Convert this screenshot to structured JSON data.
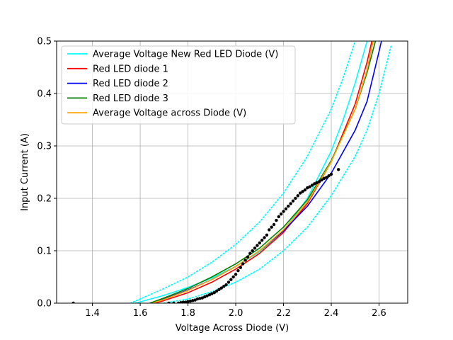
{
  "chart_data": {
    "type": "scatter",
    "title": "",
    "xlabel": "Voltage Across Diode (V)",
    "ylabel": "Input Current (A)",
    "xlim": [
      1.25,
      2.72
    ],
    "ylim": [
      0.0,
      0.5
    ],
    "xticks": [
      1.4,
      1.6,
      1.8,
      2.0,
      2.2,
      2.4,
      2.6
    ],
    "xtick_labels": [
      "1.4",
      "1.6",
      "1.8",
      "2.0",
      "2.2",
      "2.4",
      "2.6"
    ],
    "yticks": [
      0.0,
      0.1,
      0.2,
      0.3,
      0.4,
      0.5
    ],
    "ytick_labels": [
      "0.0",
      "0.1",
      "0.2",
      "0.3",
      "0.4",
      "0.5"
    ],
    "grid": true,
    "legend_position": "top-left",
    "series": [
      {
        "name": "Average Voltage New Red LED Diode (V)",
        "kind": "line",
        "color": "#00ffff",
        "style": "solid",
        "x": [
          1.58,
          1.7,
          1.8,
          1.9,
          2.0,
          2.1,
          2.2,
          2.3,
          2.4,
          2.45,
          2.5,
          2.55
        ],
        "y": [
          0.0,
          0.015,
          0.03,
          0.048,
          0.07,
          0.098,
          0.138,
          0.2,
          0.29,
          0.35,
          0.42,
          0.5
        ]
      },
      {
        "name": "Red LED diode 1",
        "kind": "line",
        "color": "#ff0000",
        "style": "solid",
        "x": [
          1.66,
          1.7,
          1.8,
          1.9,
          2.0,
          2.1,
          2.2,
          2.3,
          2.4,
          2.5,
          2.55,
          2.57
        ],
        "y": [
          0.0,
          0.005,
          0.02,
          0.04,
          0.065,
          0.095,
          0.135,
          0.19,
          0.27,
          0.38,
          0.46,
          0.5
        ]
      },
      {
        "name": "Red LED diode 2",
        "kind": "line",
        "color": "#0000ff",
        "style": "solid",
        "x": [
          1.65,
          1.7,
          1.8,
          1.9,
          2.0,
          2.1,
          2.2,
          2.3,
          2.4,
          2.5,
          2.55,
          2.6,
          2.61
        ],
        "y": [
          0.0,
          0.008,
          0.025,
          0.045,
          0.07,
          0.1,
          0.138,
          0.185,
          0.248,
          0.33,
          0.385,
          0.48,
          0.5
        ]
      },
      {
        "name": "Red LED diode 3",
        "kind": "line",
        "color": "#008000",
        "style": "solid",
        "x": [
          1.64,
          1.7,
          1.8,
          1.9,
          2.0,
          2.1,
          2.2,
          2.3,
          2.4,
          2.5,
          2.55,
          2.585
        ],
        "y": [
          0.0,
          0.01,
          0.028,
          0.05,
          0.075,
          0.105,
          0.145,
          0.197,
          0.272,
          0.37,
          0.44,
          0.5
        ]
      },
      {
        "name": "Average Voltage across Diode (V)",
        "kind": "line",
        "color": "#ffa500",
        "style": "solid",
        "x": [
          1.65,
          1.7,
          1.8,
          1.9,
          2.0,
          2.1,
          2.2,
          2.3,
          2.4,
          2.5,
          2.55,
          2.575
        ],
        "y": [
          0.0,
          0.007,
          0.024,
          0.045,
          0.07,
          0.1,
          0.14,
          0.193,
          0.27,
          0.37,
          0.445,
          0.5
        ]
      },
      {
        "name": "",
        "kind": "line",
        "color": "#00ffff",
        "style": "dotted",
        "x": [
          1.56,
          1.6,
          1.7,
          1.8,
          1.9,
          2.0,
          2.1,
          2.2,
          2.3,
          2.4,
          2.45,
          2.5
        ],
        "y": [
          0.0,
          0.008,
          0.028,
          0.05,
          0.078,
          0.112,
          0.155,
          0.21,
          0.28,
          0.37,
          0.43,
          0.5
        ]
      },
      {
        "name": "",
        "kind": "line",
        "color": "#00ffff",
        "style": "dotted",
        "x": [
          1.7,
          1.8,
          1.9,
          2.0,
          2.1,
          2.2,
          2.3,
          2.4,
          2.5,
          2.55,
          2.6,
          2.65
        ],
        "y": [
          0.0,
          0.008,
          0.022,
          0.04,
          0.065,
          0.1,
          0.145,
          0.205,
          0.28,
          0.33,
          0.4,
          0.49
        ]
      },
      {
        "name": "",
        "kind": "scatter",
        "color": "#000000",
        "x": [
          1.32,
          1.72,
          1.74,
          1.76,
          1.77,
          1.78,
          1.79,
          1.8,
          1.81,
          1.82,
          1.83,
          1.84,
          1.85,
          1.86,
          1.87,
          1.88,
          1.89,
          1.9,
          1.91,
          1.92,
          1.93,
          1.94,
          1.95,
          1.96,
          1.97,
          1.98,
          1.99,
          2.0,
          2.01,
          2.02,
          2.03,
          2.04,
          2.05,
          2.06,
          2.07,
          2.08,
          2.09,
          2.1,
          2.11,
          2.12,
          2.13,
          2.14,
          2.15,
          2.16,
          2.17,
          2.18,
          2.19,
          2.2,
          2.21,
          2.22,
          2.23,
          2.24,
          2.25,
          2.26,
          2.27,
          2.28,
          2.29,
          2.3,
          2.31,
          2.32,
          2.33,
          2.34,
          2.35,
          2.36,
          2.37,
          2.38,
          2.39,
          2.4,
          2.43
        ],
        "y": [
          0.0,
          0.0,
          0.0,
          0.0,
          0.001,
          0.002,
          0.002,
          0.003,
          0.004,
          0.005,
          0.006,
          0.008,
          0.009,
          0.01,
          0.012,
          0.014,
          0.016,
          0.018,
          0.02,
          0.023,
          0.026,
          0.029,
          0.032,
          0.035,
          0.04,
          0.045,
          0.05,
          0.055,
          0.062,
          0.068,
          0.075,
          0.082,
          0.088,
          0.095,
          0.1,
          0.105,
          0.11,
          0.115,
          0.12,
          0.125,
          0.13,
          0.14,
          0.145,
          0.15,
          0.158,
          0.165,
          0.17,
          0.175,
          0.18,
          0.185,
          0.19,
          0.195,
          0.2,
          0.205,
          0.21,
          0.213,
          0.216,
          0.22,
          0.222,
          0.225,
          0.228,
          0.23,
          0.232,
          0.235,
          0.238,
          0.24,
          0.243,
          0.246,
          0.255
        ]
      }
    ]
  }
}
